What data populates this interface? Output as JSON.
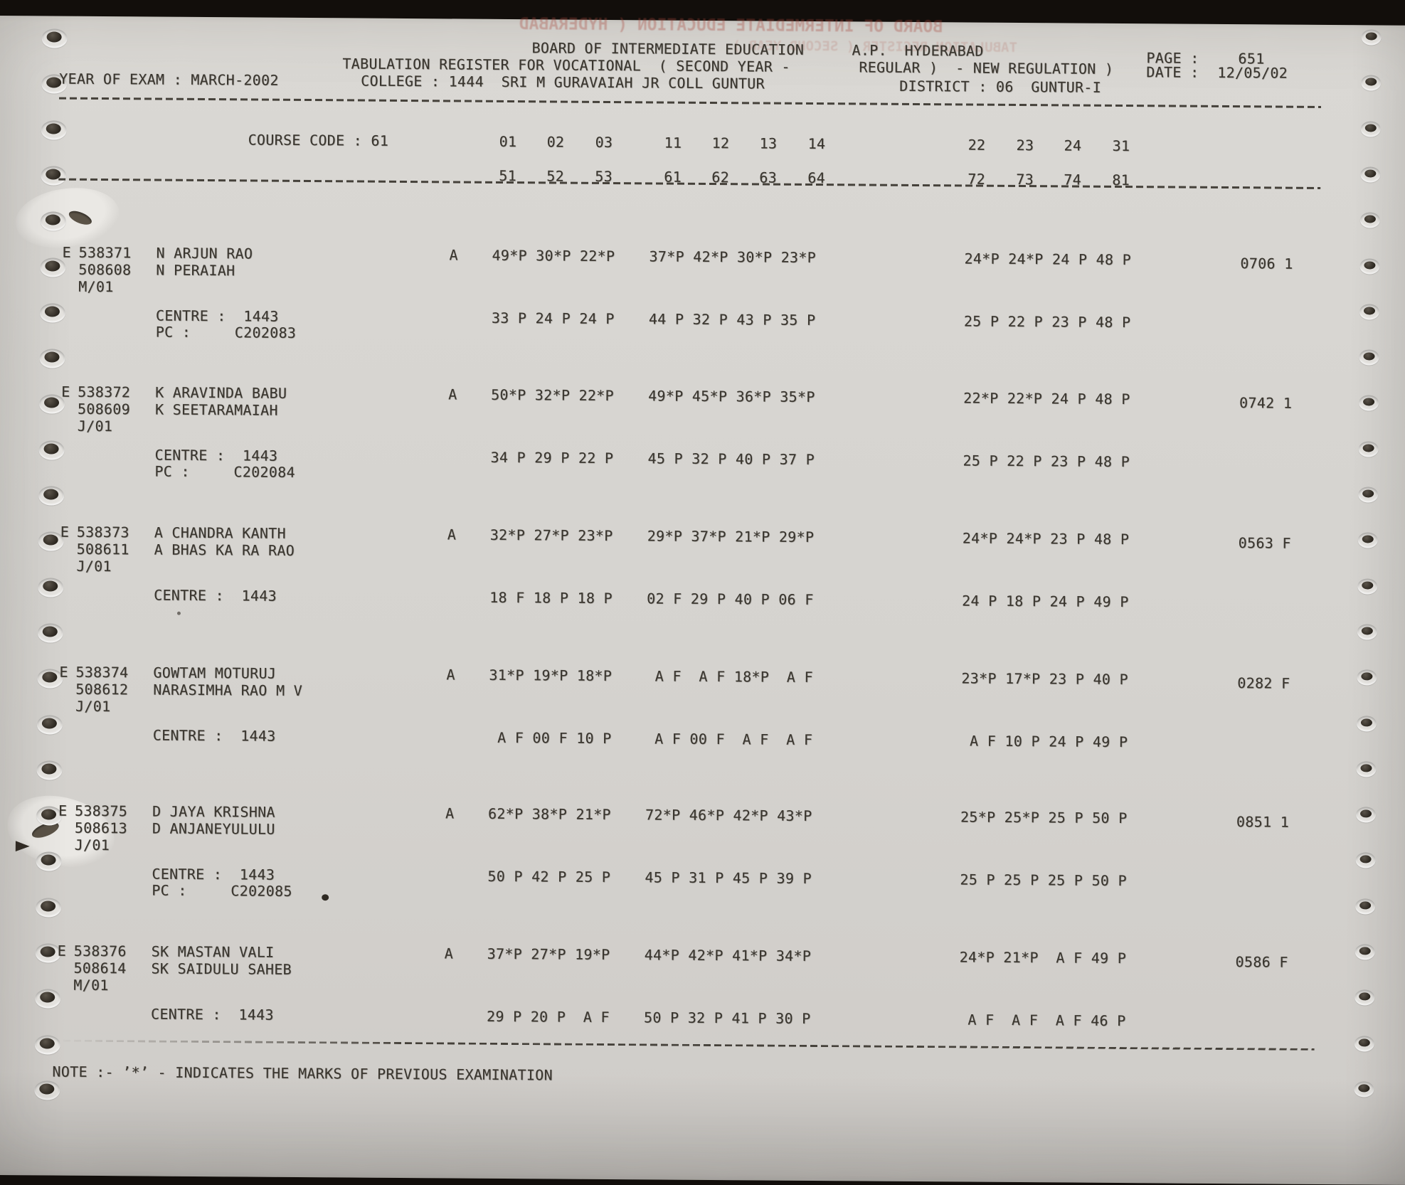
{
  "palette": {
    "paper": "#d6d3cf",
    "ink": "#3a362f",
    "ghost_ink": "#a8473c"
  },
  "document": {
    "header": {
      "org_line": "BOARD OF INTERMEDIATE EDUCATION",
      "org_place": "A.P.  HYDERABAD",
      "page_label": "PAGE :",
      "page_value": "651",
      "register_line": "TABULATION REGISTER FOR VOCATIONAL  ( SECOND YEAR -",
      "register_line2": "REGULAR )  - NEW REGULATION )",
      "date_label": "DATE :",
      "date_value": "12/05/02",
      "year_of_exam": "YEAR OF EXAM : MARCH-2002",
      "college": "COLLEGE : 1444  SRI M GURAVAIAH JR COLL GUNTUR",
      "district": "DISTRICT : 06  GUNTUR-I"
    },
    "ghost_lines": [
      "BOARD OF INTERMEDIATE EDUCATION ( HYDERABAD",
      "TABULATION REGISTER ( SECOND YEAR )"
    ],
    "course": {
      "label": "COURSE CODE : 61",
      "codes_row1": [
        "01",
        "02",
        "03",
        "11",
        "12",
        "13",
        "14",
        "22",
        "23",
        "24",
        "31"
      ],
      "codes_row2": [
        "51",
        "52",
        "53",
        "61",
        "62",
        "63",
        "64",
        "72",
        "73",
        "74",
        "81"
      ]
    },
    "records": [
      {
        "flag": "E",
        "reg_no": "538371",
        "name": "N ARJUN RAO",
        "alt_no": "508608",
        "parent": "N PERAIAH",
        "session": "M/01",
        "attendance": "A",
        "marks_prev": [
          "49*P 30*P 22*P",
          "37*P 42*P 30*P 23*P",
          "24*P 24*P 24 P 48 P"
        ],
        "total": "0706 1",
        "centre": "CENTRE :  1443",
        "pc": "PC :     C202083",
        "marks_cur": [
          "33 P 24 P 24 P",
          "44 P 32 P 43 P 35 P",
          "25 P 22 P 23 P 48 P"
        ]
      },
      {
        "flag": "E",
        "reg_no": "538372",
        "name": "K ARAVINDA BABU",
        "alt_no": "508609",
        "parent": "K SEETARAMAIAH",
        "session": "J/01",
        "attendance": "A",
        "marks_prev": [
          "50*P 32*P 22*P",
          "49*P 45*P 36*P 35*P",
          "22*P 22*P 24 P 48 P"
        ],
        "total": "0742 1",
        "centre": "CENTRE :  1443",
        "pc": "PC :     C202084",
        "marks_cur": [
          "34 P 29 P 22 P",
          "45 P 32 P 40 P 37 P",
          "25 P 22 P 23 P 48 P"
        ]
      },
      {
        "flag": "E",
        "reg_no": "538373",
        "name": "A CHANDRA KANTH",
        "alt_no": "508611",
        "parent": "A BHAS KA RA RAO",
        "session": "J/01",
        "attendance": "A",
        "marks_prev": [
          "32*P 27*P 23*P",
          "29*P 37*P 21*P 29*P",
          "24*P 24*P 23 P 48 P"
        ],
        "total": "0563 F",
        "centre": "CENTRE :  1443",
        "pc": null,
        "marks_cur": [
          "18 F 18 P 18 P",
          "02 F 29 P 40 P 06 F",
          "24 P 18 P 24 P 49 P"
        ]
      },
      {
        "flag": "E",
        "reg_no": "538374",
        "name": "GOWTAM MOTURUJ",
        "alt_no": "508612",
        "parent": "NARASIMHA RAO M V",
        "session": "J/01",
        "attendance": "A",
        "marks_prev": [
          "31*P 19*P 18*P",
          " A F  A F 18*P  A F",
          "23*P 17*P 23 P 40 P"
        ],
        "total": "0282 F",
        "centre": "CENTRE :  1443",
        "pc": null,
        "marks_cur": [
          " A F 00 F 10 P",
          " A F 00 F  A F  A F",
          " A F 10 P 24 P 49 P"
        ]
      },
      {
        "flag": "E",
        "reg_no": "538375",
        "name": "D JAYA KRISHNA",
        "alt_no": "508613",
        "parent": "D ANJANEYULULU",
        "session": "J/01",
        "attendance": "A",
        "marks_prev": [
          "62*P 38*P 21*P",
          "72*P 46*P 42*P 43*P",
          "25*P 25*P 25 P 50 P"
        ],
        "total": "0851 1",
        "centre": "CENTRE :  1443",
        "pc": "PC :     C202085",
        "marks_cur": [
          "50 P 42 P 25 P",
          "45 P 31 P 45 P 39 P",
          "25 P 25 P 25 P 50 P"
        ]
      },
      {
        "flag": "E",
        "reg_no": "538376",
        "name": "SK MASTAN VALI",
        "alt_no": "508614",
        "parent": "SK SAIDULU SAHEB",
        "session": "M/01",
        "attendance": "A",
        "marks_prev": [
          "37*P 27*P 19*P",
          "44*P 42*P 41*P 34*P",
          "24*P 21*P  A F 49 P"
        ],
        "total": "0586 F",
        "centre": "CENTRE :  1443",
        "pc": null,
        "marks_cur": [
          "29 P 20 P  A F",
          "50 P 32 P 41 P 30 P",
          " A F  A F  A F 46 P"
        ]
      }
    ],
    "note": "NOTE :- ’*’ - INDICATES THE MARKS OF PREVIOUS EXAMINATION"
  }
}
